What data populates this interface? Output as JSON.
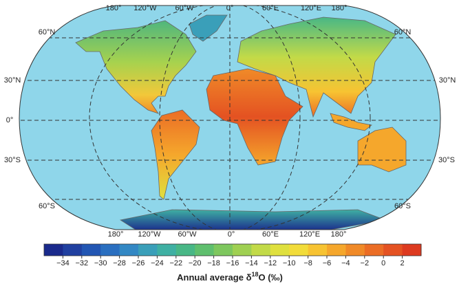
{
  "map": {
    "lon_labels_top": [
      "180°",
      "120°W",
      "60°W",
      "0°",
      "60°E",
      "120°E",
      "180°"
    ],
    "lon_labels_bottom": [
      "180°",
      "120°W",
      "60°W",
      "0°",
      "60°E",
      "120°E",
      "180°"
    ],
    "lat_labels_left": [
      "60°N",
      "30°N",
      "0°",
      "30°S",
      "60°S"
    ],
    "lat_labels_right": [
      "60°N",
      "30°N",
      "30°S",
      "60°S"
    ],
    "colorbar": {
      "range": [
        -36,
        4
      ],
      "ticks": [
        {
          "value": -34,
          "label": "−34"
        },
        {
          "value": -32,
          "label": "−32"
        },
        {
          "value": -30,
          "label": "−30"
        },
        {
          "value": -28,
          "label": "−28"
        },
        {
          "value": -26,
          "label": "−26"
        },
        {
          "value": -24,
          "label": "−24"
        },
        {
          "value": -22,
          "label": "−22"
        },
        {
          "value": -20,
          "label": "−20"
        },
        {
          "value": -18,
          "label": "−18"
        },
        {
          "value": -16,
          "label": "−16"
        },
        {
          "value": -14,
          "label": "−14"
        },
        {
          "value": -12,
          "label": "−12"
        },
        {
          "value": -10,
          "label": "−10"
        },
        {
          "value": -8,
          "label": "−8"
        },
        {
          "value": -6,
          "label": "−6"
        },
        {
          "value": -4,
          "label": "−4"
        },
        {
          "value": -2,
          "label": "−2"
        },
        0,
        2
      ],
      "colors": [
        "#1a2a8c",
        "#2040a0",
        "#2256b3",
        "#2a6fc0",
        "#3388c4",
        "#3a9fb9",
        "#3fb0a3",
        "#48b786",
        "#5fbf6e",
        "#7ec75e",
        "#9fd052",
        "#c2da48",
        "#dfe03e",
        "#f2dc3a",
        "#f7c332",
        "#f5a72c",
        "#f08a28",
        "#eb6d25",
        "#e45222",
        "#dd3a20"
      ]
    },
    "caption": {
      "text": "Annual average δ",
      "sup": "18",
      "rest": "O (‰)"
    }
  }
}
